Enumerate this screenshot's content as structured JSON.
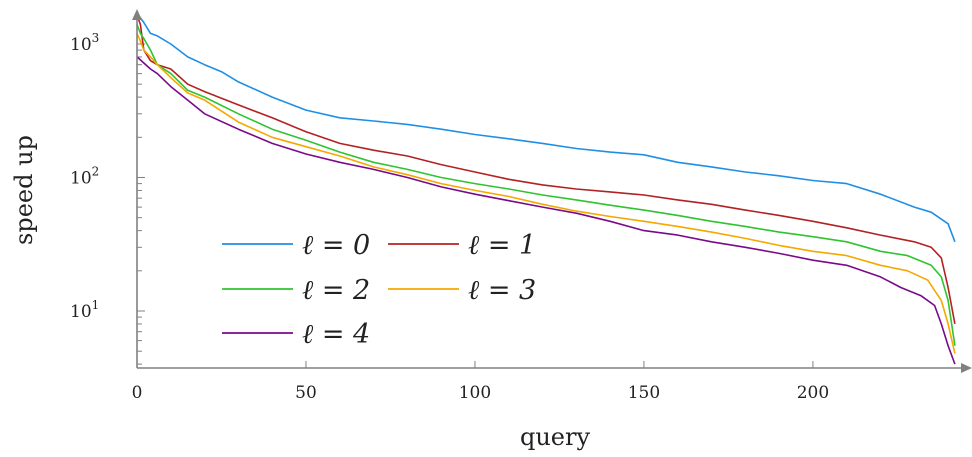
{
  "chart_data": {
    "type": "line",
    "title": "",
    "xlabel": "query",
    "ylabel": "speed up",
    "xlim": [
      0,
      245
    ],
    "ylim": [
      4,
      1500
    ],
    "yscale": "log",
    "grid": false,
    "legend_placement": "lower-left",
    "x_ticks": [
      0,
      50,
      100,
      150,
      200
    ],
    "x_tick_labels": [
      "0",
      "50",
      "100",
      "150",
      "200"
    ],
    "y_ticks": [
      10,
      100,
      1000
    ],
    "y_tick_labels": [
      "10^1",
      "10^2",
      "10^3"
    ],
    "series": [
      {
        "name": "ℓ = 0",
        "color": "#1f8fe6",
        "x": [
          0,
          2,
          4,
          6,
          10,
          15,
          20,
          25,
          30,
          40,
          50,
          60,
          70,
          80,
          90,
          100,
          110,
          120,
          130,
          140,
          150,
          160,
          170,
          180,
          190,
          200,
          210,
          220,
          230,
          235,
          240,
          242
        ],
        "y": [
          1700,
          1450,
          1200,
          1150,
          1000,
          800,
          700,
          620,
          520,
          400,
          320,
          280,
          265,
          250,
          230,
          210,
          195,
          180,
          165,
          155,
          148,
          130,
          120,
          110,
          103,
          95,
          90,
          75,
          60,
          55,
          45,
          33
        ]
      },
      {
        "name": "ℓ = 1",
        "color": "#b22222",
        "x": [
          0,
          1,
          2,
          4,
          6,
          10,
          15,
          20,
          30,
          40,
          50,
          60,
          70,
          80,
          90,
          100,
          110,
          120,
          130,
          140,
          150,
          160,
          170,
          180,
          190,
          200,
          210,
          220,
          230,
          235,
          238,
          240,
          242
        ],
        "y": [
          1650,
          1400,
          900,
          750,
          700,
          650,
          500,
          440,
          350,
          280,
          220,
          180,
          160,
          145,
          125,
          110,
          97,
          88,
          82,
          78,
          74,
          68,
          63,
          57,
          52,
          47,
          42,
          37,
          33,
          30,
          25,
          15,
          8
        ]
      },
      {
        "name": "ℓ = 2",
        "color": "#2fc42f",
        "x": [
          0,
          1,
          2,
          4,
          6,
          10,
          15,
          20,
          30,
          40,
          50,
          60,
          70,
          80,
          90,
          100,
          110,
          120,
          130,
          140,
          150,
          160,
          170,
          180,
          190,
          200,
          210,
          220,
          228,
          235,
          238,
          240,
          242
        ],
        "y": [
          1400,
          1200,
          1100,
          900,
          700,
          600,
          450,
          400,
          300,
          230,
          190,
          155,
          130,
          115,
          100,
          90,
          82,
          74,
          68,
          62,
          57,
          52,
          47,
          43,
          39,
          36,
          33,
          28,
          26,
          22,
          18,
          12,
          5.5
        ]
      },
      {
        "name": "ℓ = 3",
        "color": "#f5a800",
        "x": [
          0,
          1,
          2,
          4,
          6,
          10,
          15,
          20,
          30,
          40,
          50,
          60,
          70,
          80,
          90,
          100,
          110,
          120,
          130,
          140,
          150,
          160,
          170,
          180,
          190,
          200,
          210,
          220,
          228,
          234,
          238,
          240,
          242
        ],
        "y": [
          1200,
          1050,
          900,
          800,
          700,
          560,
          430,
          380,
          260,
          200,
          170,
          145,
          120,
          105,
          90,
          80,
          72,
          63,
          56,
          51,
          47,
          43,
          39,
          35,
          31,
          28,
          26,
          22,
          20,
          17,
          12,
          8,
          4.8
        ]
      },
      {
        "name": "ℓ = 4",
        "color": "#7a0a8a",
        "x": [
          0,
          1,
          2,
          4,
          6,
          10,
          15,
          20,
          30,
          40,
          50,
          60,
          70,
          80,
          90,
          100,
          110,
          120,
          130,
          140,
          150,
          160,
          170,
          180,
          190,
          200,
          210,
          220,
          226,
          232,
          236,
          238,
          240,
          242
        ],
        "y": [
          800,
          760,
          720,
          650,
          600,
          480,
          380,
          300,
          230,
          180,
          150,
          130,
          115,
          100,
          85,
          75,
          67,
          60,
          54,
          47,
          40,
          37,
          33,
          30,
          27,
          24,
          22,
          18,
          15,
          13,
          11,
          8,
          5.5,
          4
        ]
      }
    ]
  }
}
